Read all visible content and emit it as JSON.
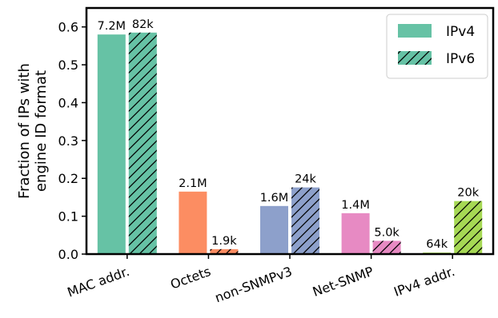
{
  "chart_data": {
    "type": "bar",
    "categories": [
      "MAC addr.",
      "Octets",
      "non-SNMPv3",
      "Net-SNMP",
      "IPv4 addr."
    ],
    "category_colors": [
      "#66c2a5",
      "#fc8d62",
      "#8da0cb",
      "#e78ac3",
      "#a6d854"
    ],
    "series": [
      {
        "name": "IPv4",
        "pattern": "solid",
        "values": [
          0.58,
          0.165,
          0.127,
          0.108,
          0.004
        ],
        "labels": [
          "7.2M",
          "2.1M",
          "1.6M",
          "1.4M",
          "64k"
        ]
      },
      {
        "name": "IPv6",
        "pattern": "hatched",
        "values": [
          0.585,
          0.013,
          0.176,
          0.035,
          0.14
        ],
        "labels": [
          "82k",
          "1.9k",
          "24k",
          "5.0k",
          "20k"
        ]
      }
    ],
    "ylabel": [
      "Fraction of IPs with",
      "engine ID format"
    ],
    "xlabel": "",
    "ylim": [
      0,
      0.65
    ],
    "yticks": [
      0.0,
      0.1,
      0.2,
      0.3,
      0.4,
      0.5,
      0.6
    ],
    "ytick_labels": [
      "0.0",
      "0.1",
      "0.2",
      "0.3",
      "0.4",
      "0.5",
      "0.6"
    ],
    "legend_position": "top-right",
    "legend_swatch_color": "#66c2a5",
    "grid": false
  }
}
